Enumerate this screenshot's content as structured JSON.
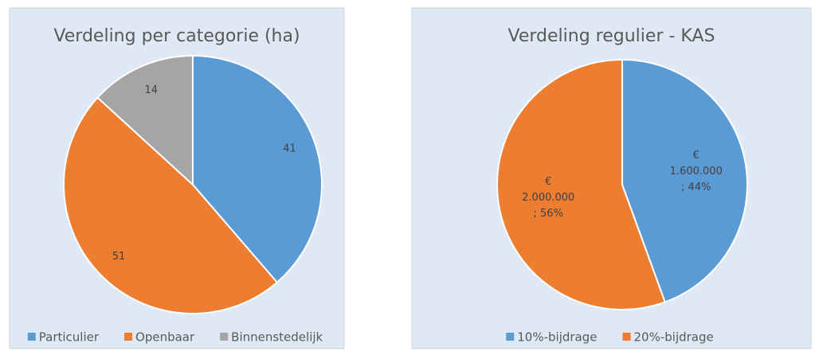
{
  "chart_data": [
    {
      "type": "pie",
      "title": "Verdeling per categorie (ha)",
      "categories": [
        "Particulier",
        "Openbaar",
        "Binnenstedelijk"
      ],
      "values": [
        41,
        51,
        14
      ],
      "colors": [
        "#5b9bd5",
        "#ed7d31",
        "#a5a5a5"
      ],
      "legend": "bottom"
    },
    {
      "type": "pie",
      "title": "Verdeling regulier - KAS",
      "categories": [
        "10%-bijdrage",
        "20%-bijdrage"
      ],
      "values": [
        1600000,
        2000000
      ],
      "value_labels": [
        [
          "€",
          "1.600.000",
          "; 44%"
        ],
        [
          "€",
          "2.000.000",
          "; 56%"
        ]
      ],
      "colors": [
        "#5b9bd5",
        "#ed7d31"
      ],
      "legend": "bottom"
    }
  ]
}
